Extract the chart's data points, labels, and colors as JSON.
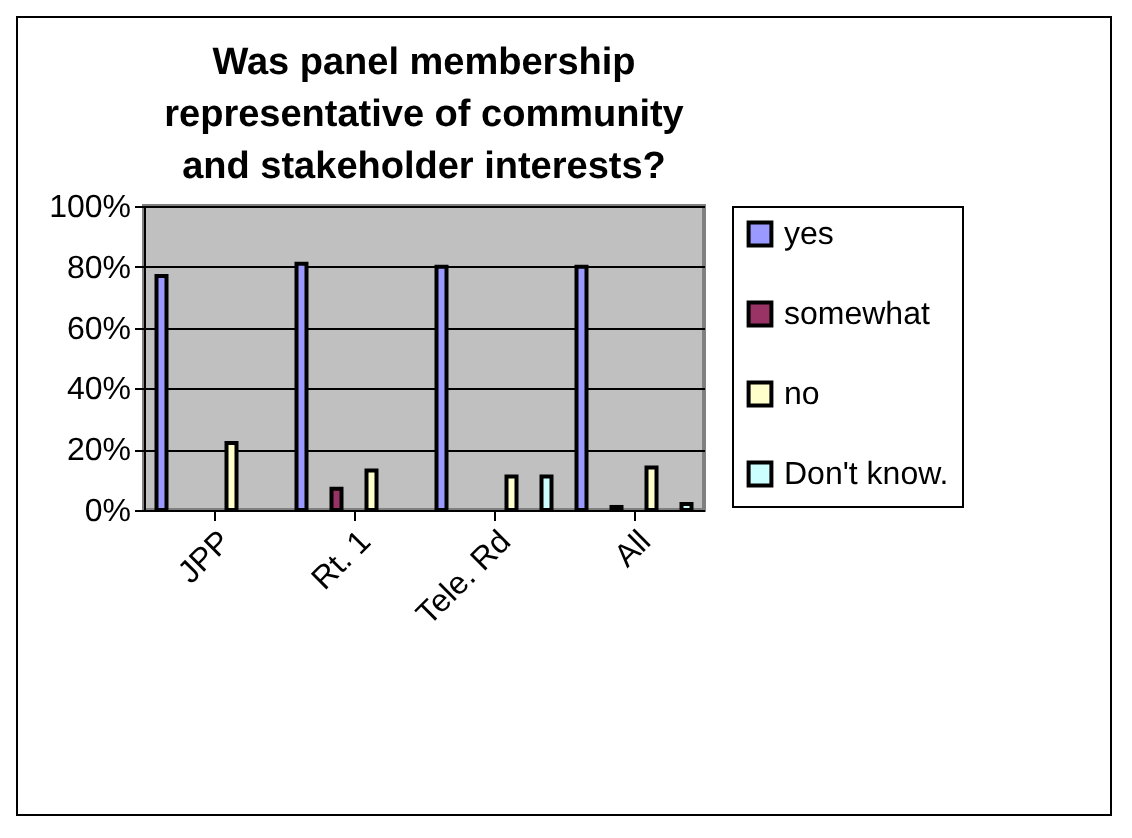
{
  "chart_data": {
    "type": "bar",
    "title": "Was panel membership representative of community and stakeholder interests?",
    "categories": [
      "JPP",
      "Rt. 1",
      "Tele. Rd",
      "All"
    ],
    "series": [
      {
        "name": "yes",
        "color": "#9999ff",
        "values": [
          77,
          81,
          80,
          80
        ]
      },
      {
        "name": "somewhat",
        "color": "#993366",
        "values": [
          null,
          7,
          null,
          1
        ]
      },
      {
        "name": "no",
        "color": "#ffffcc",
        "values": [
          22,
          13,
          11,
          14
        ]
      },
      {
        "name": "Don't know.",
        "color": "#ccffff",
        "values": [
          null,
          null,
          11,
          2
        ]
      }
    ],
    "ylim": [
      0,
      100
    ],
    "yticks": [
      {
        "value": 0,
        "label": "0%"
      },
      {
        "value": 20,
        "label": "20%"
      },
      {
        "value": 40,
        "label": "40%"
      },
      {
        "value": 60,
        "label": "60%"
      },
      {
        "value": 80,
        "label": "80%"
      },
      {
        "value": 100,
        "label": "100%"
      }
    ],
    "grid": "y",
    "legend": "right"
  }
}
